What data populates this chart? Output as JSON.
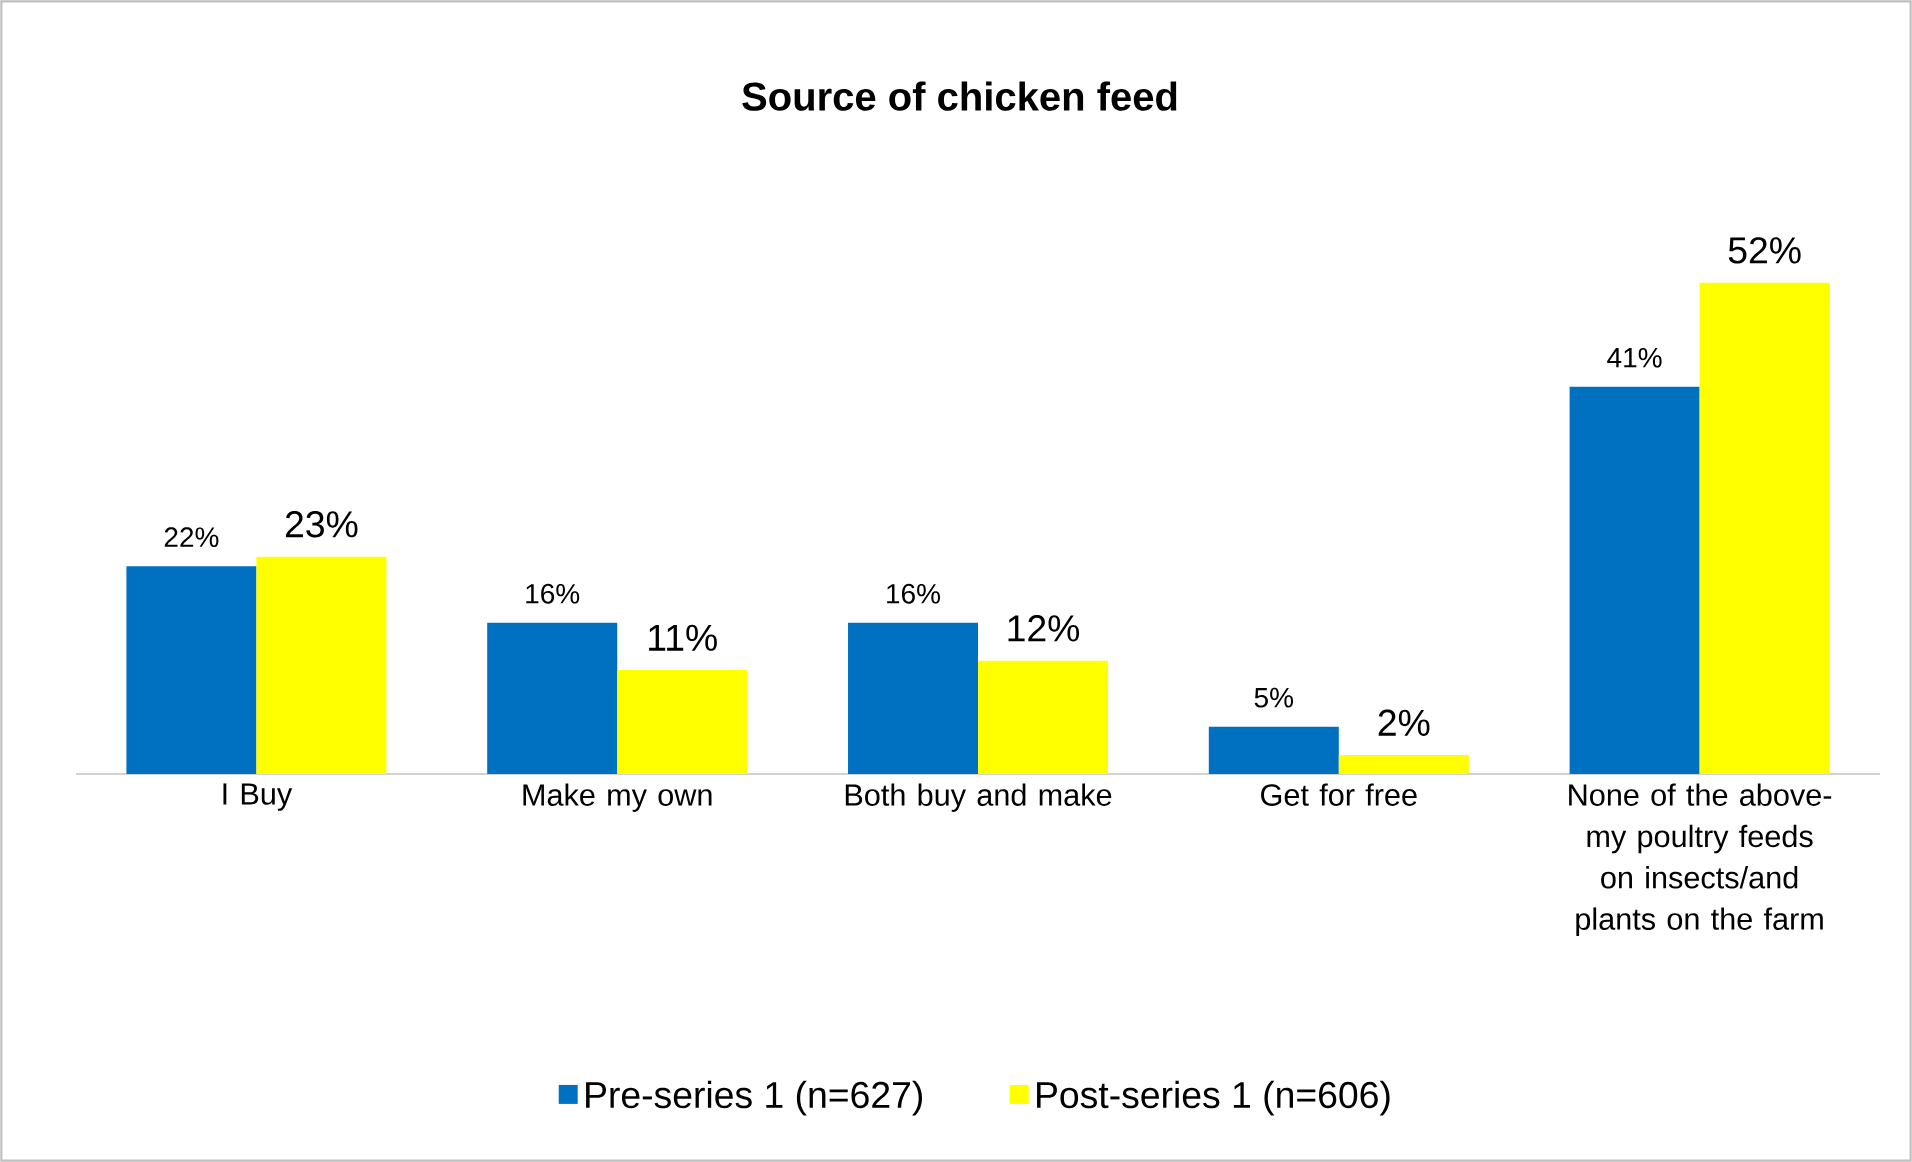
{
  "chart_data": {
    "type": "bar",
    "title": "Source of chicken feed",
    "categories": [
      "I Buy",
      "Make my own",
      "Both buy and make",
      "Get for free",
      "None of the above- my poultry feeds on insects/and plants on the farm"
    ],
    "series": [
      {
        "name": "Pre-series 1 (n=627)",
        "color": "#0070c0",
        "values": [
          22,
          16,
          16,
          5,
          41
        ],
        "value_labels": [
          "22%",
          "16%",
          "16%",
          "5%",
          "41%"
        ]
      },
      {
        "name": "Post-series 1 (n=606)",
        "color": "#ffff00",
        "values": [
          23,
          11,
          12,
          2,
          52
        ],
        "value_labels": [
          "23%",
          "11%",
          "12%",
          "2%",
          "52%"
        ]
      }
    ],
    "legend": "bottom",
    "grid": false
  }
}
